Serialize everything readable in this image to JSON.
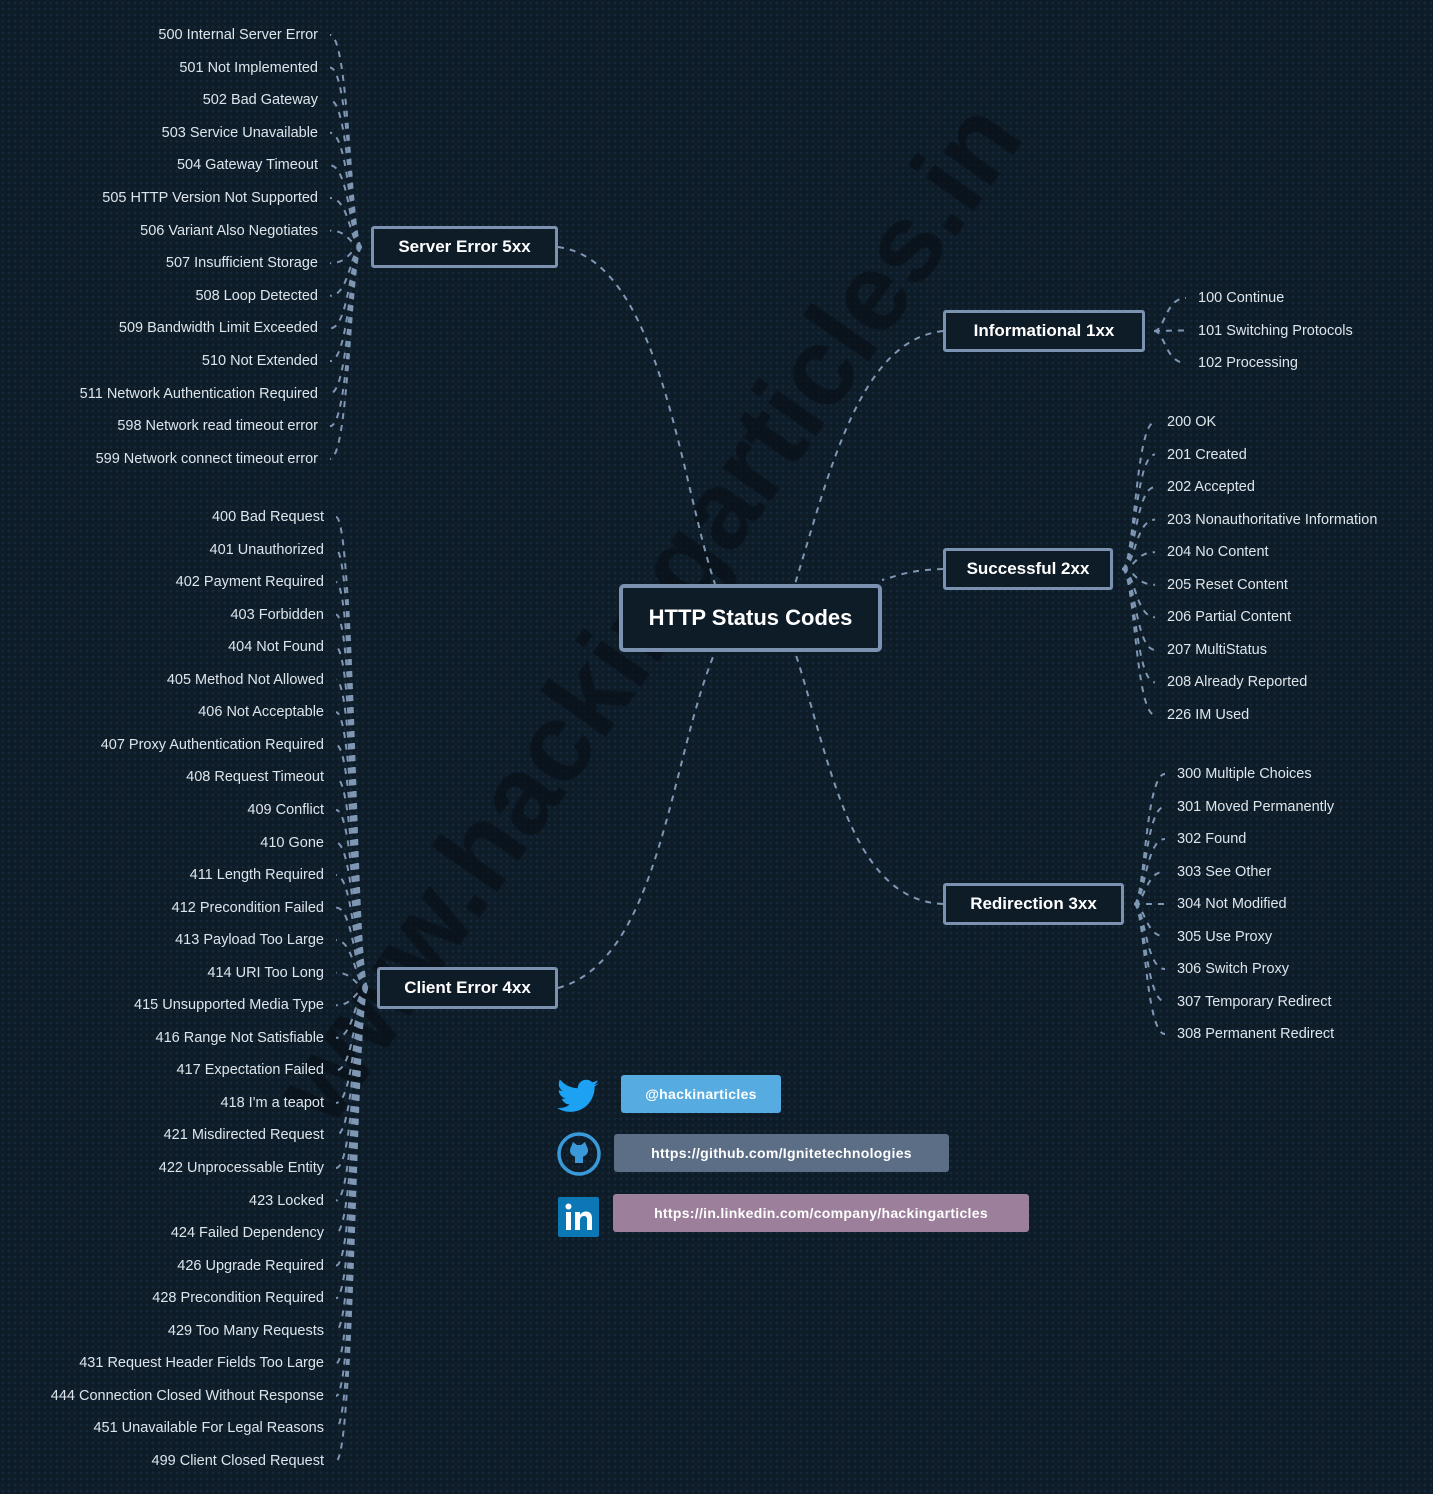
{
  "watermark": "www.hackingarticles.in",
  "center": "HTTP Status Codes",
  "colors": {
    "background": "#0e1c28",
    "border": "#7b93b0",
    "twitter": "#56ace0",
    "github": "#5b6e86",
    "linkedin": "#9c7f9a",
    "linkedin_icon": "#0b78b5"
  },
  "groups": {
    "server": {
      "title": "Server Error 5xx",
      "items": [
        "500 Internal Server Error",
        "501 Not Implemented",
        "502 Bad Gateway",
        "503 Service Unavailable",
        "504 Gateway Timeout",
        "505 HTTP Version Not Supported",
        "506 Variant Also Negotiates",
        "507 Insufficient Storage",
        "508 Loop Detected",
        "509 Bandwidth Limit Exceeded",
        "510 Not Extended",
        "511 Network Authentication Required",
        "598 Network read timeout error",
        "599 Network connect timeout error"
      ]
    },
    "client": {
      "title": "Client Error 4xx",
      "items": [
        "400 Bad Request",
        "401 Unauthorized",
        "402 Payment Required",
        "403 Forbidden",
        "404 Not Found",
        "405 Method Not Allowed",
        "406 Not Acceptable",
        "407 Proxy Authentication Required",
        "408 Request Timeout",
        "409 Conflict",
        "410 Gone",
        "411 Length Required",
        "412 Precondition Failed",
        "413 Payload Too Large",
        "414 URI Too Long",
        "415 Unsupported Media Type",
        "416 Range Not Satisfiable",
        "417 Expectation Failed",
        "418 I'm a teapot",
        "421 Misdirected Request",
        "422 Unprocessable Entity",
        "423 Locked",
        "424 Failed Dependency",
        "426 Upgrade Required",
        "428 Precondition Required",
        "429 Too Many Requests",
        "431 Request Header Fields Too Large",
        "444 Connection Closed Without Response",
        "451 Unavailable For Legal Reasons",
        "499 Client Closed Request"
      ]
    },
    "informational": {
      "title": "Informational 1xx",
      "items": [
        "100 Continue",
        "101 Switching Protocols",
        "102 Processing"
      ]
    },
    "successful": {
      "title": "Successful 2xx",
      "items": [
        "200 OK",
        "201 Created",
        "202 Accepted",
        "203 Nonauthoritative Information",
        "204 No Content",
        "205 Reset Content",
        "206 Partial Content",
        "207 MultiStatus",
        "208 Already Reported",
        "226 IM Used"
      ]
    },
    "redirection": {
      "title": "Redirection 3xx",
      "items": [
        "300 Multiple Choices",
        "301 Moved Permanently",
        "302 Found",
        "303 See Other",
        "304 Not Modified",
        "305 Use Proxy",
        "306 Switch Proxy",
        "307 Temporary Redirect",
        "308 Permanent Redirect"
      ]
    }
  },
  "social": {
    "twitter": {
      "label": "@hackinarticles",
      "icon": "twitter-icon"
    },
    "github": {
      "label": "https://github.com/Ignitetechnologies",
      "icon": "github-icon"
    },
    "linkedin": {
      "label": "https://in.linkedin.com/company/hackingarticles",
      "icon": "linkedin-icon"
    }
  }
}
